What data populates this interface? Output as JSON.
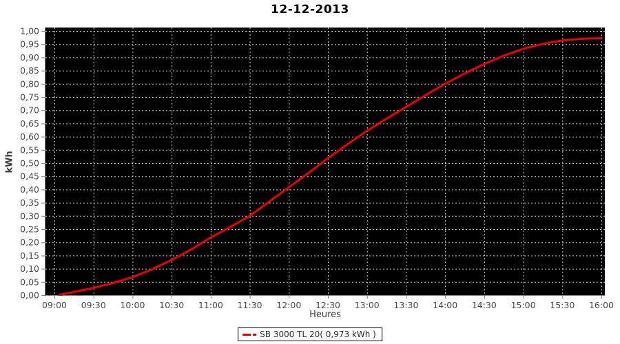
{
  "title": "12-12-2013",
  "chart_data": {
    "type": "line",
    "title": "12-12-2013",
    "xlabel": "Heures",
    "ylabel": "kWh",
    "grid": true,
    "legend_position": "bottom",
    "plot_bg_color": "#000000",
    "grid_color": "#c8c8c8",
    "axis_color": "#808080",
    "tick_label_color": "#4a4a4a",
    "x_tick_labels": [
      "09:00",
      "09:30",
      "10:00",
      "10:30",
      "11:00",
      "11:30",
      "12:00",
      "12:30",
      "13:00",
      "13:30",
      "14:00",
      "14:30",
      "15:00",
      "15:30",
      "16:00"
    ],
    "x_tick_values": [
      9,
      9.5,
      10,
      10.5,
      11,
      11.5,
      12,
      12.5,
      13,
      13.5,
      14,
      14.5,
      15,
      15.5,
      16
    ],
    "y_tick_labels": [
      "0,00",
      "0,05",
      "0,10",
      "0,15",
      "0,20",
      "0,25",
      "0,30",
      "0,35",
      "0,40",
      "0,45",
      "0,50",
      "0,55",
      "0,60",
      "0,65",
      "0,70",
      "0,75",
      "0,80",
      "0,85",
      "0,90",
      "0,95",
      "1,00"
    ],
    "y_tick_values": [
      0,
      0.05,
      0.1,
      0.15,
      0.2,
      0.25,
      0.3,
      0.35,
      0.4,
      0.45,
      0.5,
      0.55,
      0.6,
      0.65,
      0.7,
      0.75,
      0.8,
      0.85,
      0.9,
      0.95,
      1.0
    ],
    "xlim": [
      8.885,
      16.045
    ],
    "ylim": [
      0,
      1.013
    ],
    "series": [
      {
        "name": "SB 3000 TL 20( 0,973 kWh )",
        "color": "#ee0000",
        "total_kwh_label": "0,973 kWh",
        "points": [
          [
            9.07,
            0.001
          ],
          [
            9.25,
            0.012
          ],
          [
            9.5,
            0.027
          ],
          [
            9.75,
            0.046
          ],
          [
            10.0,
            0.068
          ],
          [
            10.25,
            0.098
          ],
          [
            10.5,
            0.133
          ],
          [
            10.75,
            0.173
          ],
          [
            11.0,
            0.218
          ],
          [
            11.25,
            0.258
          ],
          [
            11.5,
            0.3
          ],
          [
            11.75,
            0.354
          ],
          [
            12.0,
            0.408
          ],
          [
            12.25,
            0.462
          ],
          [
            12.5,
            0.518
          ],
          [
            12.75,
            0.571
          ],
          [
            13.0,
            0.622
          ],
          [
            13.25,
            0.668
          ],
          [
            13.5,
            0.712
          ],
          [
            13.75,
            0.757
          ],
          [
            14.0,
            0.8
          ],
          [
            14.25,
            0.839
          ],
          [
            14.5,
            0.875
          ],
          [
            14.75,
            0.906
          ],
          [
            15.0,
            0.932
          ],
          [
            15.25,
            0.951
          ],
          [
            15.5,
            0.964
          ],
          [
            15.75,
            0.97
          ],
          [
            16.0,
            0.973
          ]
        ]
      }
    ]
  }
}
